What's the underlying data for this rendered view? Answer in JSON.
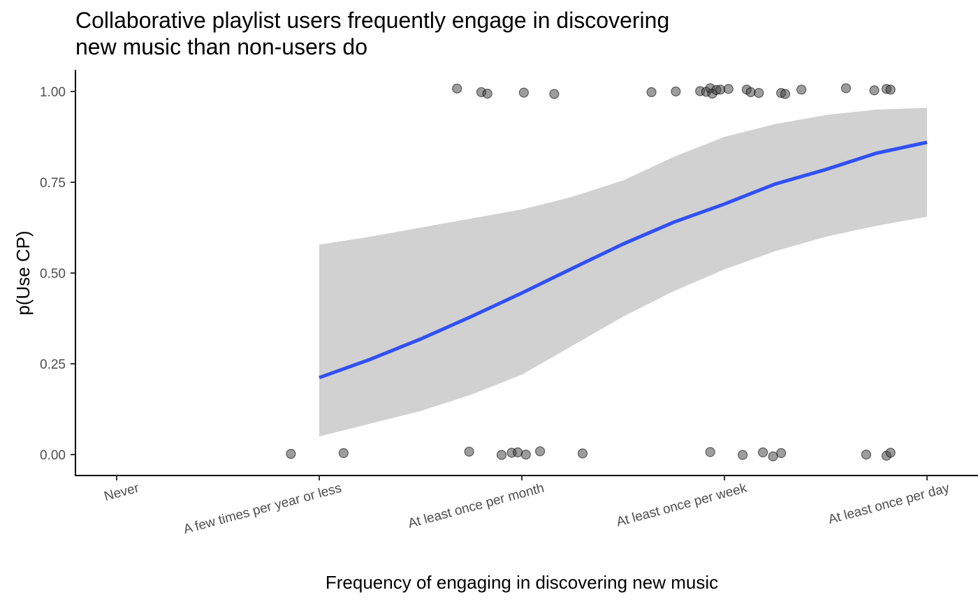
{
  "chart_data": {
    "type": "scatter",
    "title": "Collaborative playlist users frequently engage in discovering new music than non-users do",
    "title_lines": [
      "Collaborative playlist users frequently engage in discovering",
      "new music than non-users do"
    ],
    "xlabel": "Frequency of engaging in discovering new music",
    "ylabel": "p(Use CP)",
    "x_categories": [
      "Never",
      "A few times per year or less",
      "At least once per month",
      "At least once per week",
      "At least once per day"
    ],
    "ylim": [
      -0.055,
      1.065
    ],
    "y_ticks": [
      0.0,
      0.25,
      0.5,
      0.75,
      1.0
    ],
    "y_tick_labels": [
      "0.00",
      "0.25",
      "0.50",
      "0.75",
      "1.00"
    ],
    "grid": false,
    "colors": {
      "fit_line": "#3050f8",
      "ribbon": "#d1d1d1",
      "points": "#3c3c3c"
    },
    "fit": {
      "x": [
        2,
        2.25,
        2.5,
        2.75,
        3,
        3.25,
        3.5,
        3.75,
        4,
        4.25,
        4.5,
        4.75,
        5
      ],
      "y": [
        0.212,
        0.262,
        0.318,
        0.38,
        0.445,
        0.513,
        0.58,
        0.64,
        0.69,
        0.745,
        0.785,
        0.83,
        0.86
      ],
      "ymin": [
        0.05,
        0.085,
        0.12,
        0.165,
        0.22,
        0.3,
        0.38,
        0.45,
        0.51,
        0.56,
        0.6,
        0.63,
        0.655
      ],
      "ymax": [
        0.578,
        0.6,
        0.625,
        0.65,
        0.675,
        0.71,
        0.755,
        0.82,
        0.875,
        0.91,
        0.935,
        0.95,
        0.955
      ]
    },
    "points": [
      {
        "x": 1.86,
        "y": 0.002
      },
      {
        "x": 2.12,
        "y": 0.004
      },
      {
        "x": 2.74,
        "y": 0.008
      },
      {
        "x": 2.9,
        "y": -0.001
      },
      {
        "x": 2.95,
        "y": 0.005
      },
      {
        "x": 2.98,
        "y": 0.006
      },
      {
        "x": 3.02,
        "y": 0.0
      },
      {
        "x": 3.09,
        "y": 0.009
      },
      {
        "x": 3.3,
        "y": 0.003
      },
      {
        "x": 2.68,
        "y": 1.008
      },
      {
        "x": 2.8,
        "y": 0.998
      },
      {
        "x": 2.83,
        "y": 0.994
      },
      {
        "x": 3.01,
        "y": 0.997
      },
      {
        "x": 3.16,
        "y": 0.993
      },
      {
        "x": 3.64,
        "y": 0.998
      },
      {
        "x": 3.76,
        "y": 1.0
      },
      {
        "x": 3.88,
        "y": 1.001
      },
      {
        "x": 3.91,
        "y": 0.999
      },
      {
        "x": 3.93,
        "y": 1.009
      },
      {
        "x": 3.94,
        "y": 0.994
      },
      {
        "x": 3.96,
        "y": 1.004
      },
      {
        "x": 3.98,
        "y": 1.005
      },
      {
        "x": 4.02,
        "y": 1.007
      },
      {
        "x": 4.11,
        "y": 1.005
      },
      {
        "x": 4.13,
        "y": 0.998
      },
      {
        "x": 4.17,
        "y": 0.996
      },
      {
        "x": 4.28,
        "y": 0.996
      },
      {
        "x": 4.3,
        "y": 0.993
      },
      {
        "x": 4.38,
        "y": 1.005
      },
      {
        "x": 3.93,
        "y": 0.007
      },
      {
        "x": 4.09,
        "y": -0.001
      },
      {
        "x": 4.19,
        "y": 0.006
      },
      {
        "x": 4.24,
        "y": -0.005
      },
      {
        "x": 4.28,
        "y": 0.004
      },
      {
        "x": 4.6,
        "y": 1.009
      },
      {
        "x": 4.74,
        "y": 1.003
      },
      {
        "x": 4.8,
        "y": 1.007
      },
      {
        "x": 4.82,
        "y": 1.005
      },
      {
        "x": 4.7,
        "y": 0.0
      },
      {
        "x": 4.8,
        "y": -0.003
      },
      {
        "x": 4.82,
        "y": 0.005
      }
    ]
  }
}
